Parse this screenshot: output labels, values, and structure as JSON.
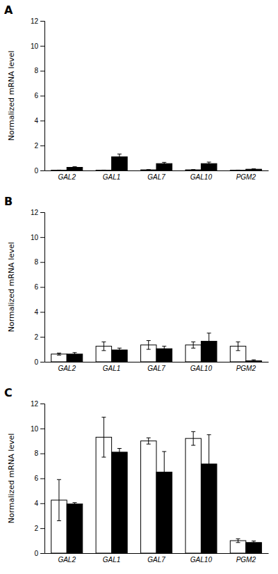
{
  "chart_data": [
    {
      "type": "bar",
      "title": "A",
      "ylabel": "Normalized mRNA level",
      "categories": [
        "GAL2",
        "GAL1",
        "GAL7",
        "GAL10",
        "PGM2"
      ],
      "series": [
        {
          "color": "#ffffff",
          "values": [
            0.02,
            0.02,
            0.05,
            0.05,
            0.02
          ],
          "errors": [
            0.01,
            0.01,
            0.02,
            0.02,
            0.01
          ]
        },
        {
          "color": "#000000",
          "values": [
            0.25,
            1.1,
            0.55,
            0.55,
            0.1
          ],
          "errors": [
            0.05,
            0.22,
            0.1,
            0.12,
            0.03
          ]
        }
      ],
      "ylim": [
        0,
        12
      ],
      "yticks": [
        0,
        2,
        4,
        6,
        8,
        10,
        12
      ],
      "grid": false
    },
    {
      "type": "bar",
      "title": "B",
      "ylabel": "Normalized mRNA level",
      "categories": [
        "GAL2",
        "GAL1",
        "GAL7",
        "GAL10",
        "PGM2"
      ],
      "series": [
        {
          "color": "#ffffff",
          "values": [
            0.62,
            1.25,
            1.35,
            1.35,
            1.25
          ],
          "errors": [
            0.08,
            0.35,
            0.35,
            0.25,
            0.35
          ]
        },
        {
          "color": "#000000",
          "values": [
            0.62,
            0.95,
            1.05,
            1.65,
            0.08
          ],
          "errors": [
            0.12,
            0.15,
            0.2,
            0.65,
            0.08
          ]
        }
      ],
      "ylim": [
        0,
        12
      ],
      "yticks": [
        0,
        2,
        4,
        6,
        8,
        10,
        12
      ],
      "grid": false
    },
    {
      "type": "bar",
      "title": "C",
      "ylabel": "Normalized mRNA level",
      "categories": [
        "GAL2",
        "GAL1",
        "GAL7",
        "GAL10",
        "PGM2"
      ],
      "series": [
        {
          "color": "#ffffff",
          "values": [
            4.25,
            9.3,
            9.0,
            9.2,
            1.0
          ],
          "errors": [
            1.65,
            1.6,
            0.25,
            0.55,
            0.15
          ]
        },
        {
          "color": "#000000",
          "values": [
            3.95,
            8.1,
            6.5,
            7.15,
            0.85
          ],
          "errors": [
            0.1,
            0.3,
            1.65,
            2.35,
            0.12
          ]
        }
      ],
      "ylim": [
        0,
        12
      ],
      "yticks": [
        0,
        2,
        4,
        6,
        8,
        10,
        12
      ],
      "grid": false
    }
  ]
}
